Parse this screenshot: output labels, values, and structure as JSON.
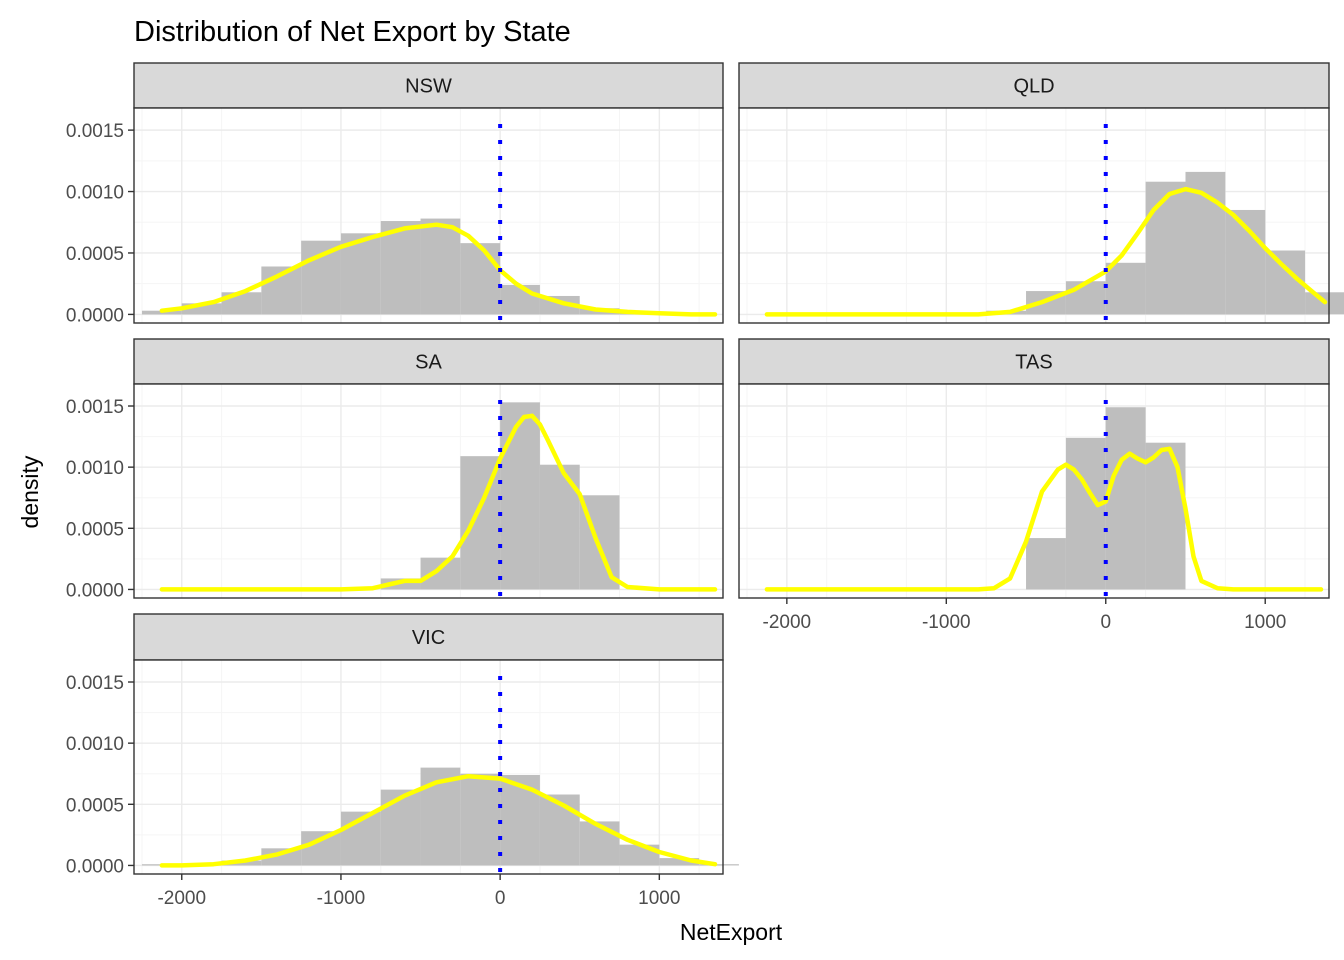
{
  "chart_data": {
    "type": "faceted-histogram-density",
    "title": "Distribution of Net Export by State",
    "xlabel": "NetExport",
    "ylabel": "density",
    "xlim": [
      -2300,
      1400
    ],
    "ylim": [
      -7e-05,
      0.00168
    ],
    "x_ticks": [
      -2000,
      -1000,
      0,
      1000
    ],
    "x_tick_labels": [
      "-2000",
      "-1000",
      "0",
      "1000"
    ],
    "y_ticks": [
      0,
      0.0005,
      0.001,
      0.0015
    ],
    "y_tick_labels": [
      "0.0000",
      "0.0005",
      "0.0010",
      "0.0015"
    ],
    "grid": true,
    "reference_line": {
      "x": 0,
      "style": "dotted"
    },
    "bins": {
      "centers": [
        -2125,
        -1875,
        -1625,
        -1375,
        -1125,
        -875,
        -625,
        -375,
        -125,
        125,
        375,
        625,
        875,
        1125,
        1375
      ],
      "width": 250
    },
    "colors": {
      "histogram": "#bebebe",
      "density": "#ffff00",
      "reference_line": "#0000ff",
      "strip": "#d9d9d9",
      "border": "#333333",
      "grid_major": "#ebebeb",
      "grid_minor": "#f5f5f5"
    },
    "panels": [
      {
        "name": "NSW",
        "hist": [
          3e-05,
          9e-05,
          0.00018,
          0.00039,
          0.0006,
          0.00066,
          0.00076,
          0.00078,
          0.00058,
          0.00024,
          0.00015,
          5e-05,
          1e-05,
          0,
          0
        ],
        "density": {
          "x": [
            -2125,
            -2000,
            -1800,
            -1600,
            -1400,
            -1200,
            -1000,
            -800,
            -600,
            -400,
            -300,
            -200,
            -100,
            0,
            100,
            200,
            400,
            600,
            800,
            1000,
            1200,
            1350
          ],
          "y": [
            3e-05,
            5e-05,
            0.0001,
            0.00019,
            0.00031,
            0.00044,
            0.00055,
            0.00063,
            0.0007,
            0.00073,
            0.00071,
            0.00064,
            0.00052,
            0.00036,
            0.00025,
            0.00017,
            9e-05,
            4e-05,
            2e-05,
            1e-05,
            0,
            0
          ]
        }
      },
      {
        "name": "QLD",
        "hist": [
          0,
          0,
          0,
          0,
          0,
          0,
          3e-05,
          0.00019,
          0.00027,
          0.00042,
          0.00108,
          0.00116,
          0.00085,
          0.00052,
          0.00018
        ],
        "density": {
          "x": [
            -2125,
            -1500,
            -1000,
            -800,
            -600,
            -400,
            -200,
            0,
            100,
            200,
            300,
            400,
            500,
            600,
            700,
            800,
            900,
            1000,
            1100,
            1200,
            1300,
            1375
          ],
          "y": [
            0,
            0,
            0,
            0,
            2e-05,
            0.0001,
            0.0002,
            0.00035,
            0.00048,
            0.00066,
            0.00085,
            0.00098,
            0.00102,
            0.00099,
            0.00091,
            0.00081,
            0.00068,
            0.00054,
            0.00041,
            0.00029,
            0.00018,
            0.0001
          ]
        }
      },
      {
        "name": "SA",
        "hist": [
          0,
          0,
          0,
          0,
          0,
          0,
          9e-05,
          0.00026,
          0.00109,
          0.00153,
          0.00102,
          0.00077,
          0,
          0,
          0
        ],
        "density": {
          "x": [
            -2125,
            -1500,
            -1000,
            -800,
            -700,
            -600,
            -500,
            -400,
            -300,
            -200,
            -100,
            0,
            100,
            150,
            200,
            250,
            300,
            400,
            500,
            600,
            700,
            800,
            1000,
            1350
          ],
          "y": [
            0,
            0,
            0,
            1e-05,
            4e-05,
            7e-05,
            7e-05,
            0.00015,
            0.00027,
            0.00048,
            0.00075,
            0.00107,
            0.00133,
            0.00141,
            0.00142,
            0.00135,
            0.00122,
            0.00095,
            0.00078,
            0.00042,
            0.0001,
            2e-05,
            0,
            0
          ]
        }
      },
      {
        "name": "TAS",
        "hist": [
          0,
          0,
          0,
          0,
          0,
          0,
          0,
          0.00042,
          0.00124,
          0.00149,
          0.0012,
          0,
          0,
          0,
          0
        ],
        "density": {
          "x": [
            -2125,
            -1000,
            -800,
            -700,
            -600,
            -500,
            -400,
            -300,
            -250,
            -200,
            -150,
            -100,
            -50,
            0,
            50,
            100,
            150,
            200,
            250,
            300,
            350,
            400,
            450,
            500,
            550,
            600,
            700,
            800,
            1000,
            1350
          ],
          "y": [
            0,
            0,
            0,
            1e-05,
            9e-05,
            0.00039,
            0.0008,
            0.00098,
            0.00102,
            0.00098,
            0.0009,
            0.00079,
            0.00069,
            0.00072,
            0.00093,
            0.00106,
            0.00111,
            0.00107,
            0.00104,
            0.00108,
            0.00114,
            0.00115,
            0.001,
            0.00066,
            0.00027,
            7e-05,
            1e-05,
            0,
            0,
            0
          ]
        }
      },
      {
        "name": "VIC",
        "hist": [
          1e-05,
          1e-05,
          4e-05,
          0.00014,
          0.00028,
          0.00044,
          0.00062,
          0.0008,
          0.00075,
          0.00074,
          0.00058,
          0.00036,
          0.00017,
          6e-05,
          1e-05
        ],
        "density": {
          "x": [
            -2125,
            -2000,
            -1800,
            -1600,
            -1400,
            -1200,
            -1000,
            -800,
            -600,
            -400,
            -200,
            0,
            200,
            400,
            600,
            800,
            1000,
            1200,
            1350
          ],
          "y": [
            0,
            0,
            1e-05,
            4e-05,
            9e-05,
            0.00017,
            0.00029,
            0.00043,
            0.00057,
            0.00068,
            0.00073,
            0.00071,
            0.00062,
            0.00049,
            0.00034,
            0.00021,
            0.00011,
            4e-05,
            1e-05
          ]
        }
      }
    ]
  }
}
